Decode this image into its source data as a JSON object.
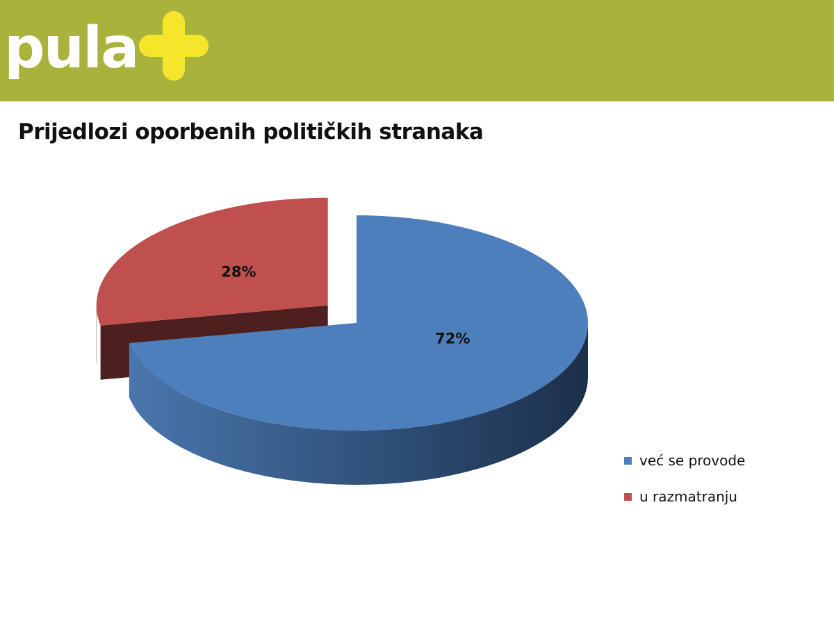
{
  "brand": {
    "logo_text": "pula",
    "banner_color": "#a9b33c",
    "plus_color": "#f5e62c"
  },
  "chart_data": {
    "type": "pie",
    "title": "Prijedlozi oporbenih političkih stranaka",
    "categories": [
      "već se provode",
      "u razmatranju"
    ],
    "values": [
      72,
      28
    ],
    "data_labels": [
      "72%",
      "28%"
    ],
    "colors": [
      "#4e7fbd",
      "#c0504e"
    ],
    "legend": [
      "već se provode",
      "u razmatranju"
    ],
    "legend_position": "right",
    "three_d": true,
    "exploded": true
  }
}
